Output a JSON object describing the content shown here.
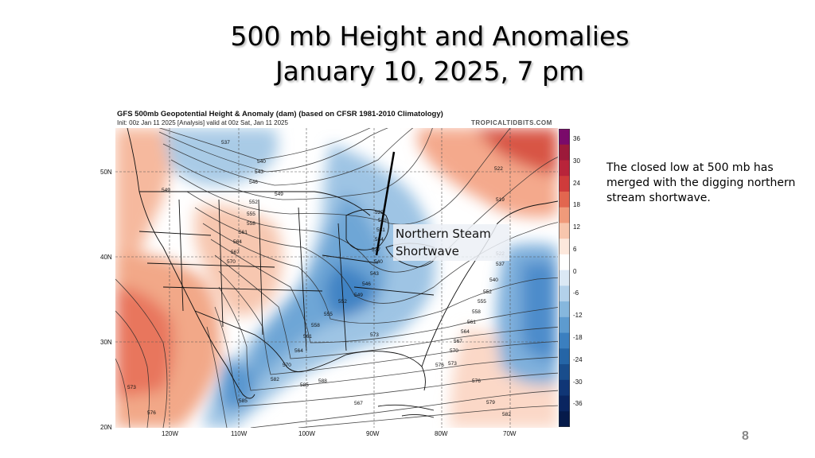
{
  "slide": {
    "title_line1": "500 mb Height and Anomalies",
    "title_line2": "January 10, 2025, 7 pm",
    "page_number": "8"
  },
  "map": {
    "title": "GFS 500mb Geopotential Height & Anomaly (dam) (based on CFSR 1981-2010 Climatology)",
    "subtitle": "Init: 00z Jan 11 2025   [Analysis]   valid at 00z Sat, Jan 11 2025",
    "source": "TROPICALTIDBITS.COM",
    "lat_labels": [
      "50N",
      "40N",
      "30N",
      "20N"
    ],
    "lon_labels": [
      "120W",
      "110W",
      "100W",
      "90W",
      "80W",
      "70W"
    ],
    "colorbar": {
      "labels": [
        "36",
        "30",
        "24",
        "18",
        "12",
        "6",
        "0",
        "-6",
        "-12",
        "-18",
        "-24",
        "-30",
        "-36"
      ],
      "colors": [
        "#7a0a6a",
        "#9c1a3a",
        "#b8243a",
        "#cf3b3b",
        "#e2664f",
        "#f09a7a",
        "#f8c6ad",
        "#fde8dc",
        "#ffffff",
        "#dbe8f4",
        "#b3d1ea",
        "#86b7dd",
        "#5d9bcf",
        "#3b7fbf",
        "#2565a6",
        "#194d8c",
        "#103676",
        "#0a2560",
        "#061a4a"
      ]
    },
    "height_labels": [
      "537",
      "540",
      "543",
      "546",
      "549",
      "549",
      "552",
      "555",
      "558",
      "561",
      "564",
      "567",
      "570",
      "573",
      "576",
      "585",
      "582",
      "570",
      "564",
      "561",
      "558",
      "555",
      "552",
      "549",
      "546",
      "543",
      "540",
      "537",
      "534",
      "531",
      "528",
      "525",
      "522",
      "519",
      "522",
      "537",
      "540",
      "552",
      "555",
      "558",
      "561",
      "564",
      "567",
      "570",
      "573",
      "576",
      "579",
      "582",
      "585",
      "588",
      "573",
      "576",
      "567",
      "582"
    ],
    "annotation_line1": "Northern Steam",
    "annotation_line2": "Shortwave"
  },
  "side_note": "The closed low at 500 mb has merged with the digging northern stream shortwave."
}
